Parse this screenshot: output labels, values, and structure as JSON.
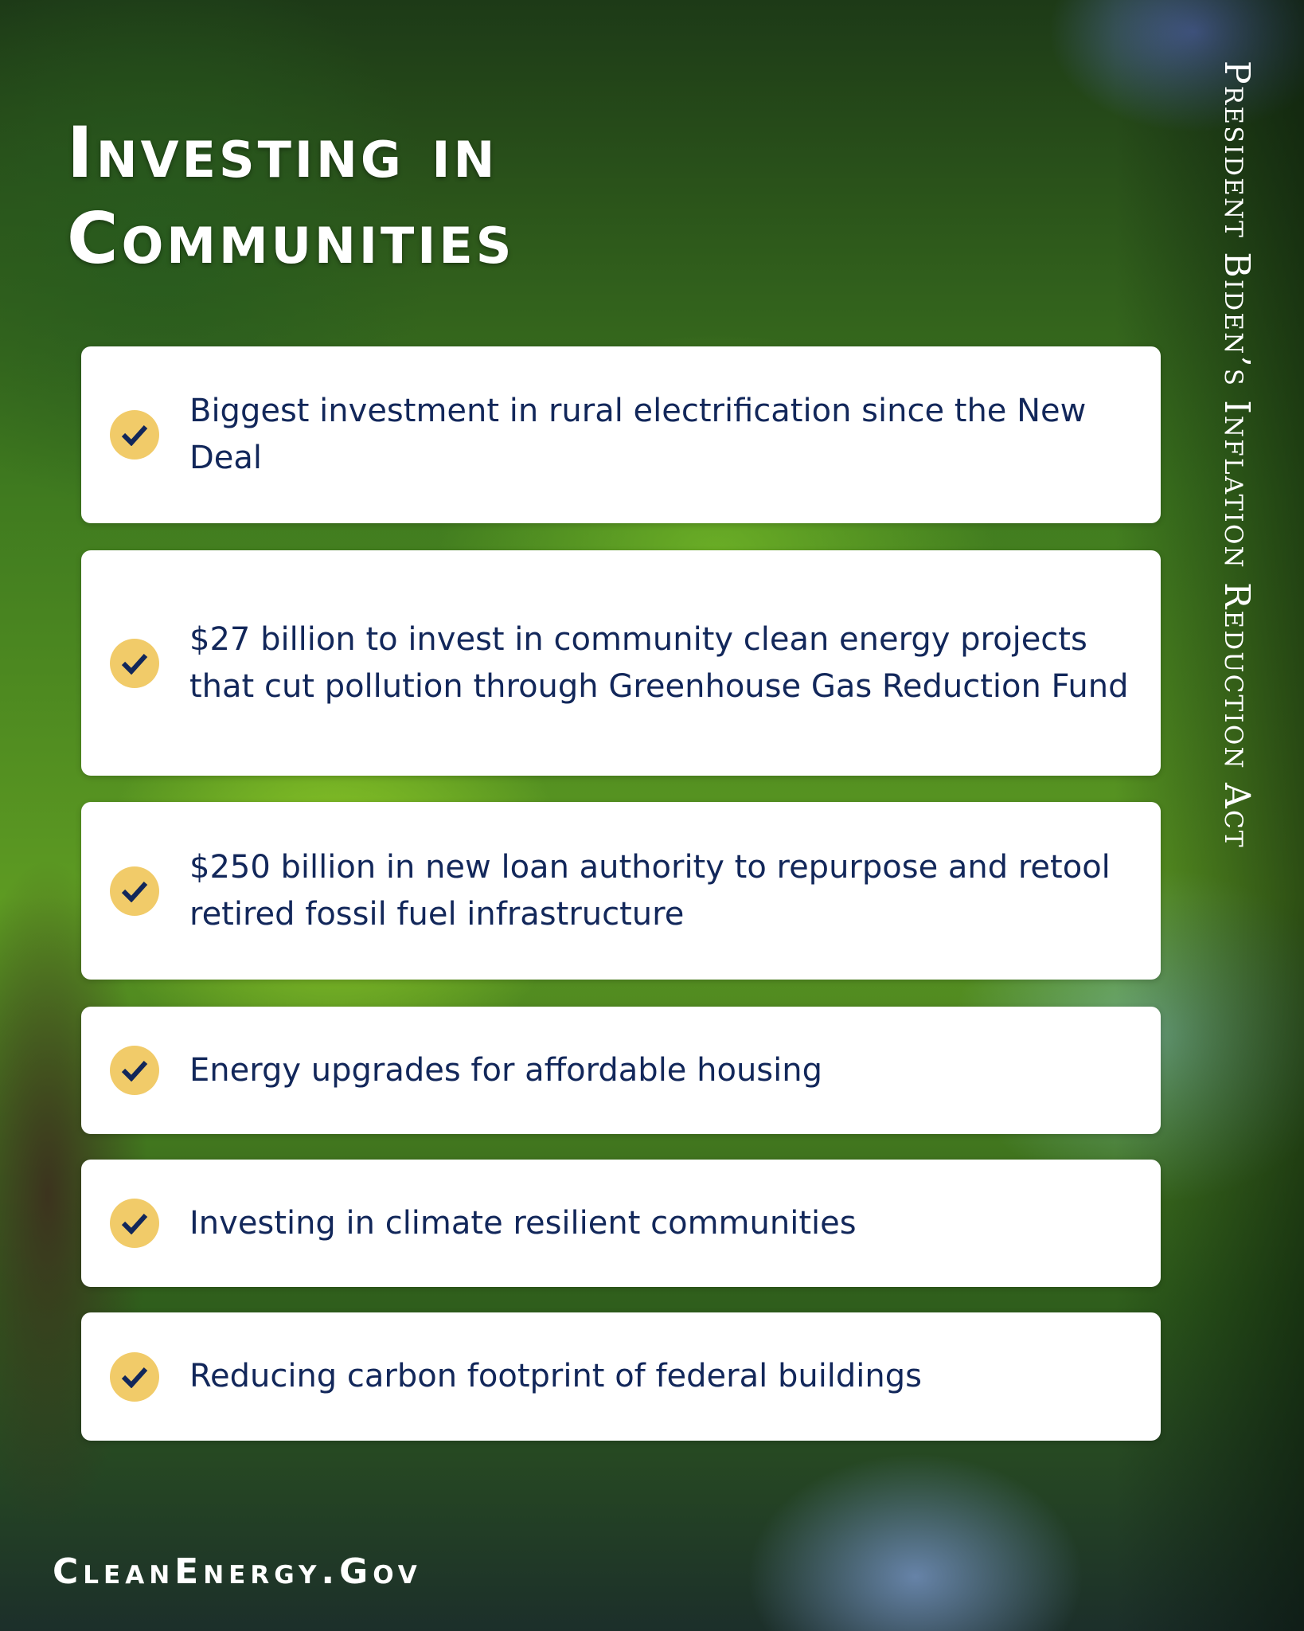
{
  "title": {
    "line1": "Investing in",
    "line2": "Communities"
  },
  "side_title": "President Biden’s Inflation Reduction Act",
  "items": [
    {
      "icon": "check-icon",
      "text": "Biggest investment in rural electrification since the New Deal"
    },
    {
      "icon": "check-icon",
      "text": "$27 billion to invest in community clean energy projects that cut pollution through Greenhouse Gas Reduction Fund"
    },
    {
      "icon": "check-icon",
      "text": "$250 billion in new loan authority to repurpose and retool retired fossil fuel infrastructure"
    },
    {
      "icon": "check-icon",
      "text": "Energy upgrades for affordable housing"
    },
    {
      "icon": "check-icon",
      "text": "Investing in climate resilient communities"
    },
    {
      "icon": "check-icon",
      "text": "Reducing carbon footprint of federal buildings"
    }
  ],
  "footer": "CleanEnergy.Gov",
  "colors": {
    "text": "#12275a",
    "check_bg": "#f1cb69",
    "card": "#ffffff"
  }
}
